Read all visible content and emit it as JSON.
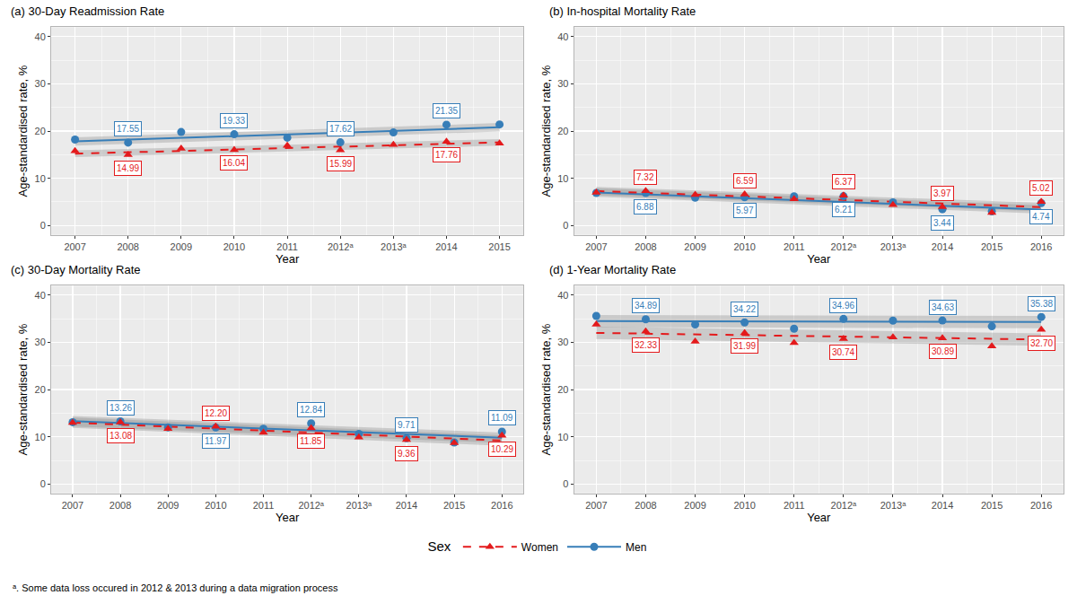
{
  "legend_title": "Sex",
  "footnote": "ᵃ. Some data loss occured in 2012 & 2013 during a data migration process",
  "chart_data": [
    {
      "type": "line",
      "title": "(a) 30-Day Readmission Rate",
      "x_label": "Year",
      "y_label": "Age-standardised rate, %",
      "x": [
        2007,
        2008,
        2009,
        2010,
        2011,
        2012,
        2013,
        2014,
        2015
      ],
      "xlim": [
        2006.55,
        2015.45
      ],
      "xticks": [
        2007,
        2008,
        2009,
        2010,
        2011,
        {
          "value": 2012,
          "label": "2012ᵃ"
        },
        {
          "value": 2013,
          "label": "2013ᵃ"
        },
        2014,
        2015
      ],
      "ylim": [
        -2,
        42
      ],
      "yticks": [
        0,
        10,
        20,
        30,
        40
      ],
      "grid": true,
      "legend": "bottom",
      "data_labels": true,
      "series": [
        {
          "name": "Men",
          "color": "#377eb8",
          "marker": "circle",
          "line_style": "solid",
          "values": [
            18.2,
            17.55,
            19.8,
            19.33,
            18.6,
            17.62,
            19.7,
            21.35,
            21.4
          ],
          "value_labels": [
            null,
            "17.55",
            null,
            "19.33",
            null,
            "17.62",
            null,
            "21.35",
            null
          ],
          "fit": {
            "x": [
              2007,
              2015
            ],
            "values": [
              17.8,
              20.8
            ],
            "lower": [
              16.9,
              19.9
            ],
            "upper": [
              18.7,
              21.7
            ]
          }
        },
        {
          "name": "Women",
          "color": "#e41a1c",
          "marker": "triangle",
          "line_style": "dashed",
          "values": [
            15.8,
            14.99,
            16.3,
            16.04,
            16.9,
            15.99,
            17.1,
            17.76,
            17.4
          ],
          "value_labels": [
            null,
            "14.99",
            null,
            "16.04",
            null,
            "15.99",
            null,
            "17.76",
            null
          ],
          "fit": {
            "x": [
              2007,
              2015
            ],
            "values": [
              15.2,
              17.6
            ],
            "lower": [
              14.5,
              16.9
            ],
            "upper": [
              15.9,
              18.3
            ]
          }
        }
      ]
    },
    {
      "type": "line",
      "title": "(b) In-hospital Mortality Rate",
      "x_label": "Year",
      "y_label": "Age-standardised rate, %",
      "x": [
        2007,
        2008,
        2009,
        2010,
        2011,
        2012,
        2013,
        2014,
        2015,
        2016
      ],
      "xlim": [
        2006.55,
        2016.45
      ],
      "xticks": [
        2007,
        2008,
        2009,
        2010,
        2011,
        {
          "value": 2012,
          "label": "2012ᵃ"
        },
        {
          "value": 2013,
          "label": "2013ᵃ"
        },
        2014,
        2015,
        2016
      ],
      "ylim": [
        -2,
        42
      ],
      "yticks": [
        0,
        10,
        20,
        30,
        40
      ],
      "grid": true,
      "legend": "bottom",
      "data_labels": true,
      "series": [
        {
          "name": "Men",
          "color": "#377eb8",
          "marker": "circle",
          "line_style": "solid",
          "values": [
            6.9,
            6.88,
            5.9,
            5.97,
            6.2,
            6.21,
            4.9,
            3.44,
            3.0,
            4.74
          ],
          "value_labels": [
            null,
            "6.88",
            null,
            "5.97",
            null,
            "6.21",
            null,
            "3.44",
            null,
            "4.74"
          ],
          "fit": {
            "x": [
              2007,
              2016
            ],
            "values": [
              7.0,
              3.4
            ],
            "lower": [
              6.1,
              2.5
            ],
            "upper": [
              7.9,
              4.3
            ]
          }
        },
        {
          "name": "Women",
          "color": "#e41a1c",
          "marker": "triangle",
          "line_style": "dashed",
          "values": [
            7.0,
            7.32,
            6.5,
            6.59,
            5.6,
            6.37,
            4.4,
            3.97,
            2.7,
            5.02
          ],
          "value_labels": [
            null,
            "7.32",
            null,
            "6.59",
            null,
            "6.37",
            null,
            "3.97",
            null,
            "5.02"
          ],
          "fit": {
            "x": [
              2007,
              2016
            ],
            "values": [
              7.3,
              3.9
            ],
            "lower": [
              6.4,
              3.0
            ],
            "upper": [
              8.2,
              4.8
            ]
          }
        }
      ]
    },
    {
      "type": "line",
      "title": "(c) 30-Day Mortality Rate",
      "x_label": "Year",
      "y_label": "Age-standardised rate, %",
      "x": [
        2007,
        2008,
        2009,
        2010,
        2011,
        2012,
        2013,
        2014,
        2015,
        2016
      ],
      "xlim": [
        2006.55,
        2016.45
      ],
      "xticks": [
        2007,
        2008,
        2009,
        2010,
        2011,
        {
          "value": 2012,
          "label": "2012ᵃ"
        },
        {
          "value": 2013,
          "label": "2013ᵃ"
        },
        2014,
        2015,
        2016
      ],
      "ylim": [
        -2,
        42
      ],
      "yticks": [
        0,
        10,
        20,
        30,
        40
      ],
      "grid": true,
      "legend": "bottom",
      "data_labels": true,
      "series": [
        {
          "name": "Men",
          "color": "#377eb8",
          "marker": "circle",
          "line_style": "solid",
          "values": [
            13.1,
            13.26,
            12.0,
            11.97,
            11.7,
            12.84,
            10.6,
            9.71,
            8.8,
            11.09
          ],
          "value_labels": [
            null,
            "13.26",
            null,
            "11.97",
            null,
            "12.84",
            null,
            "9.71",
            null,
            "11.09"
          ],
          "fit": {
            "x": [
              2007,
              2016
            ],
            "values": [
              13.3,
              9.8
            ],
            "lower": [
              12.2,
              8.7
            ],
            "upper": [
              14.4,
              10.9
            ]
          }
        },
        {
          "name": "Women",
          "color": "#e41a1c",
          "marker": "triangle",
          "line_style": "dashed",
          "values": [
            13.0,
            13.08,
            11.7,
            12.2,
            10.9,
            11.85,
            9.9,
            9.36,
            8.7,
            10.29
          ],
          "value_labels": [
            null,
            "13.08",
            null,
            "12.20",
            null,
            "11.85",
            null,
            "9.36",
            null,
            "10.29"
          ],
          "fit": {
            "x": [
              2007,
              2016
            ],
            "values": [
              13.0,
              9.2
            ],
            "lower": [
              11.9,
              8.1
            ],
            "upper": [
              14.1,
              10.3
            ]
          }
        }
      ]
    },
    {
      "type": "line",
      "title": "(d) 1-Year Mortality Rate",
      "x_label": "Year",
      "y_label": "Age-standardised rate, %",
      "x": [
        2007,
        2008,
        2009,
        2010,
        2011,
        2012,
        2013,
        2014,
        2015,
        2016
      ],
      "xlim": [
        2006.55,
        2016.45
      ],
      "xticks": [
        2007,
        2008,
        2009,
        2010,
        2011,
        {
          "value": 2012,
          "label": "2012ᵃ"
        },
        {
          "value": 2013,
          "label": "2013ᵃ"
        },
        2014,
        2015,
        2016
      ],
      "ylim": [
        -2,
        42
      ],
      "yticks": [
        0,
        10,
        20,
        30,
        40
      ],
      "grid": true,
      "legend": "bottom",
      "data_labels": true,
      "series": [
        {
          "name": "Men",
          "color": "#377eb8",
          "marker": "circle",
          "line_style": "solid",
          "values": [
            35.6,
            34.89,
            33.8,
            34.22,
            32.9,
            34.96,
            34.6,
            34.63,
            33.4,
            35.38
          ],
          "value_labels": [
            null,
            "34.89",
            null,
            "34.22",
            null,
            "34.96",
            null,
            "34.63",
            null,
            "35.38"
          ],
          "fit": {
            "x": [
              2007,
              2016
            ],
            "values": [
              34.5,
              34.3
            ],
            "lower": [
              33.2,
              33.0
            ],
            "upper": [
              35.8,
              35.6
            ]
          }
        },
        {
          "name": "Women",
          "color": "#e41a1c",
          "marker": "triangle",
          "line_style": "dashed",
          "values": [
            33.8,
            32.33,
            30.2,
            31.99,
            29.9,
            30.74,
            31.1,
            30.89,
            29.2,
            32.7
          ],
          "value_labels": [
            null,
            "32.33",
            null,
            "31.99",
            null,
            "30.74",
            null,
            "30.89",
            null,
            "32.70"
          ],
          "fit": {
            "x": [
              2007,
              2016
            ],
            "values": [
              32.0,
              30.6
            ],
            "lower": [
              30.7,
              29.3
            ],
            "upper": [
              33.3,
              31.9
            ]
          }
        }
      ]
    }
  ]
}
